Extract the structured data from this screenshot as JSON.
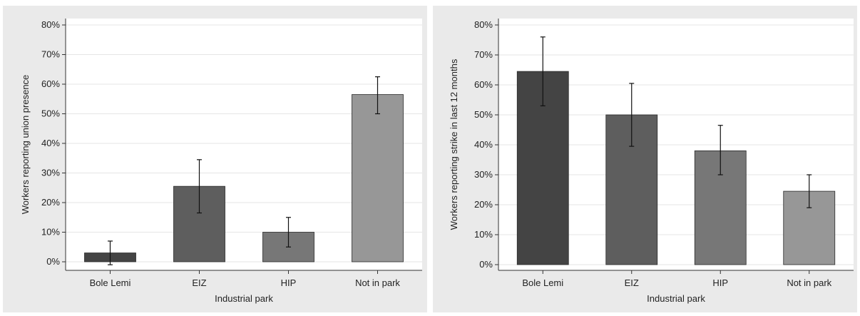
{
  "chart_data": [
    {
      "type": "bar",
      "categories": [
        "Bole Lemi",
        "EIZ",
        "HIP",
        "Not in park"
      ],
      "values": [
        3,
        25.5,
        10,
        56.5
      ],
      "error_low": [
        -1,
        16.5,
        5,
        50
      ],
      "error_high": [
        7,
        34.5,
        15,
        62.5
      ],
      "bar_colors": [
        "#444444",
        "#5e5e5e",
        "#777777",
        "#979797"
      ],
      "xlabel": "Industrial park",
      "ylabel": "Workers reporting union presence",
      "ylim": [
        0,
        80
      ],
      "yticks": [
        0,
        10,
        20,
        30,
        40,
        50,
        60,
        70,
        80
      ],
      "ytick_labels": [
        "0%",
        "10%",
        "20%",
        "30%",
        "40%",
        "50%",
        "60%",
        "70%",
        "80%"
      ],
      "grid": true
    },
    {
      "type": "bar",
      "categories": [
        "Bole Lemi",
        "EIZ",
        "HIP",
        "Not in park"
      ],
      "values": [
        64.5,
        50,
        38,
        24.5
      ],
      "error_low": [
        53,
        39.5,
        30,
        19
      ],
      "error_high": [
        76,
        60.5,
        46.5,
        30
      ],
      "bar_colors": [
        "#444444",
        "#5e5e5e",
        "#777777",
        "#979797"
      ],
      "xlabel": "Industrial park",
      "ylabel": "Workers reporting strike in last 12 months",
      "ylim": [
        0,
        80
      ],
      "yticks": [
        0,
        10,
        20,
        30,
        40,
        50,
        60,
        70,
        80
      ],
      "ytick_labels": [
        "0%",
        "10%",
        "20%",
        "30%",
        "40%",
        "50%",
        "60%",
        "70%",
        "80%"
      ],
      "grid": true
    }
  ]
}
